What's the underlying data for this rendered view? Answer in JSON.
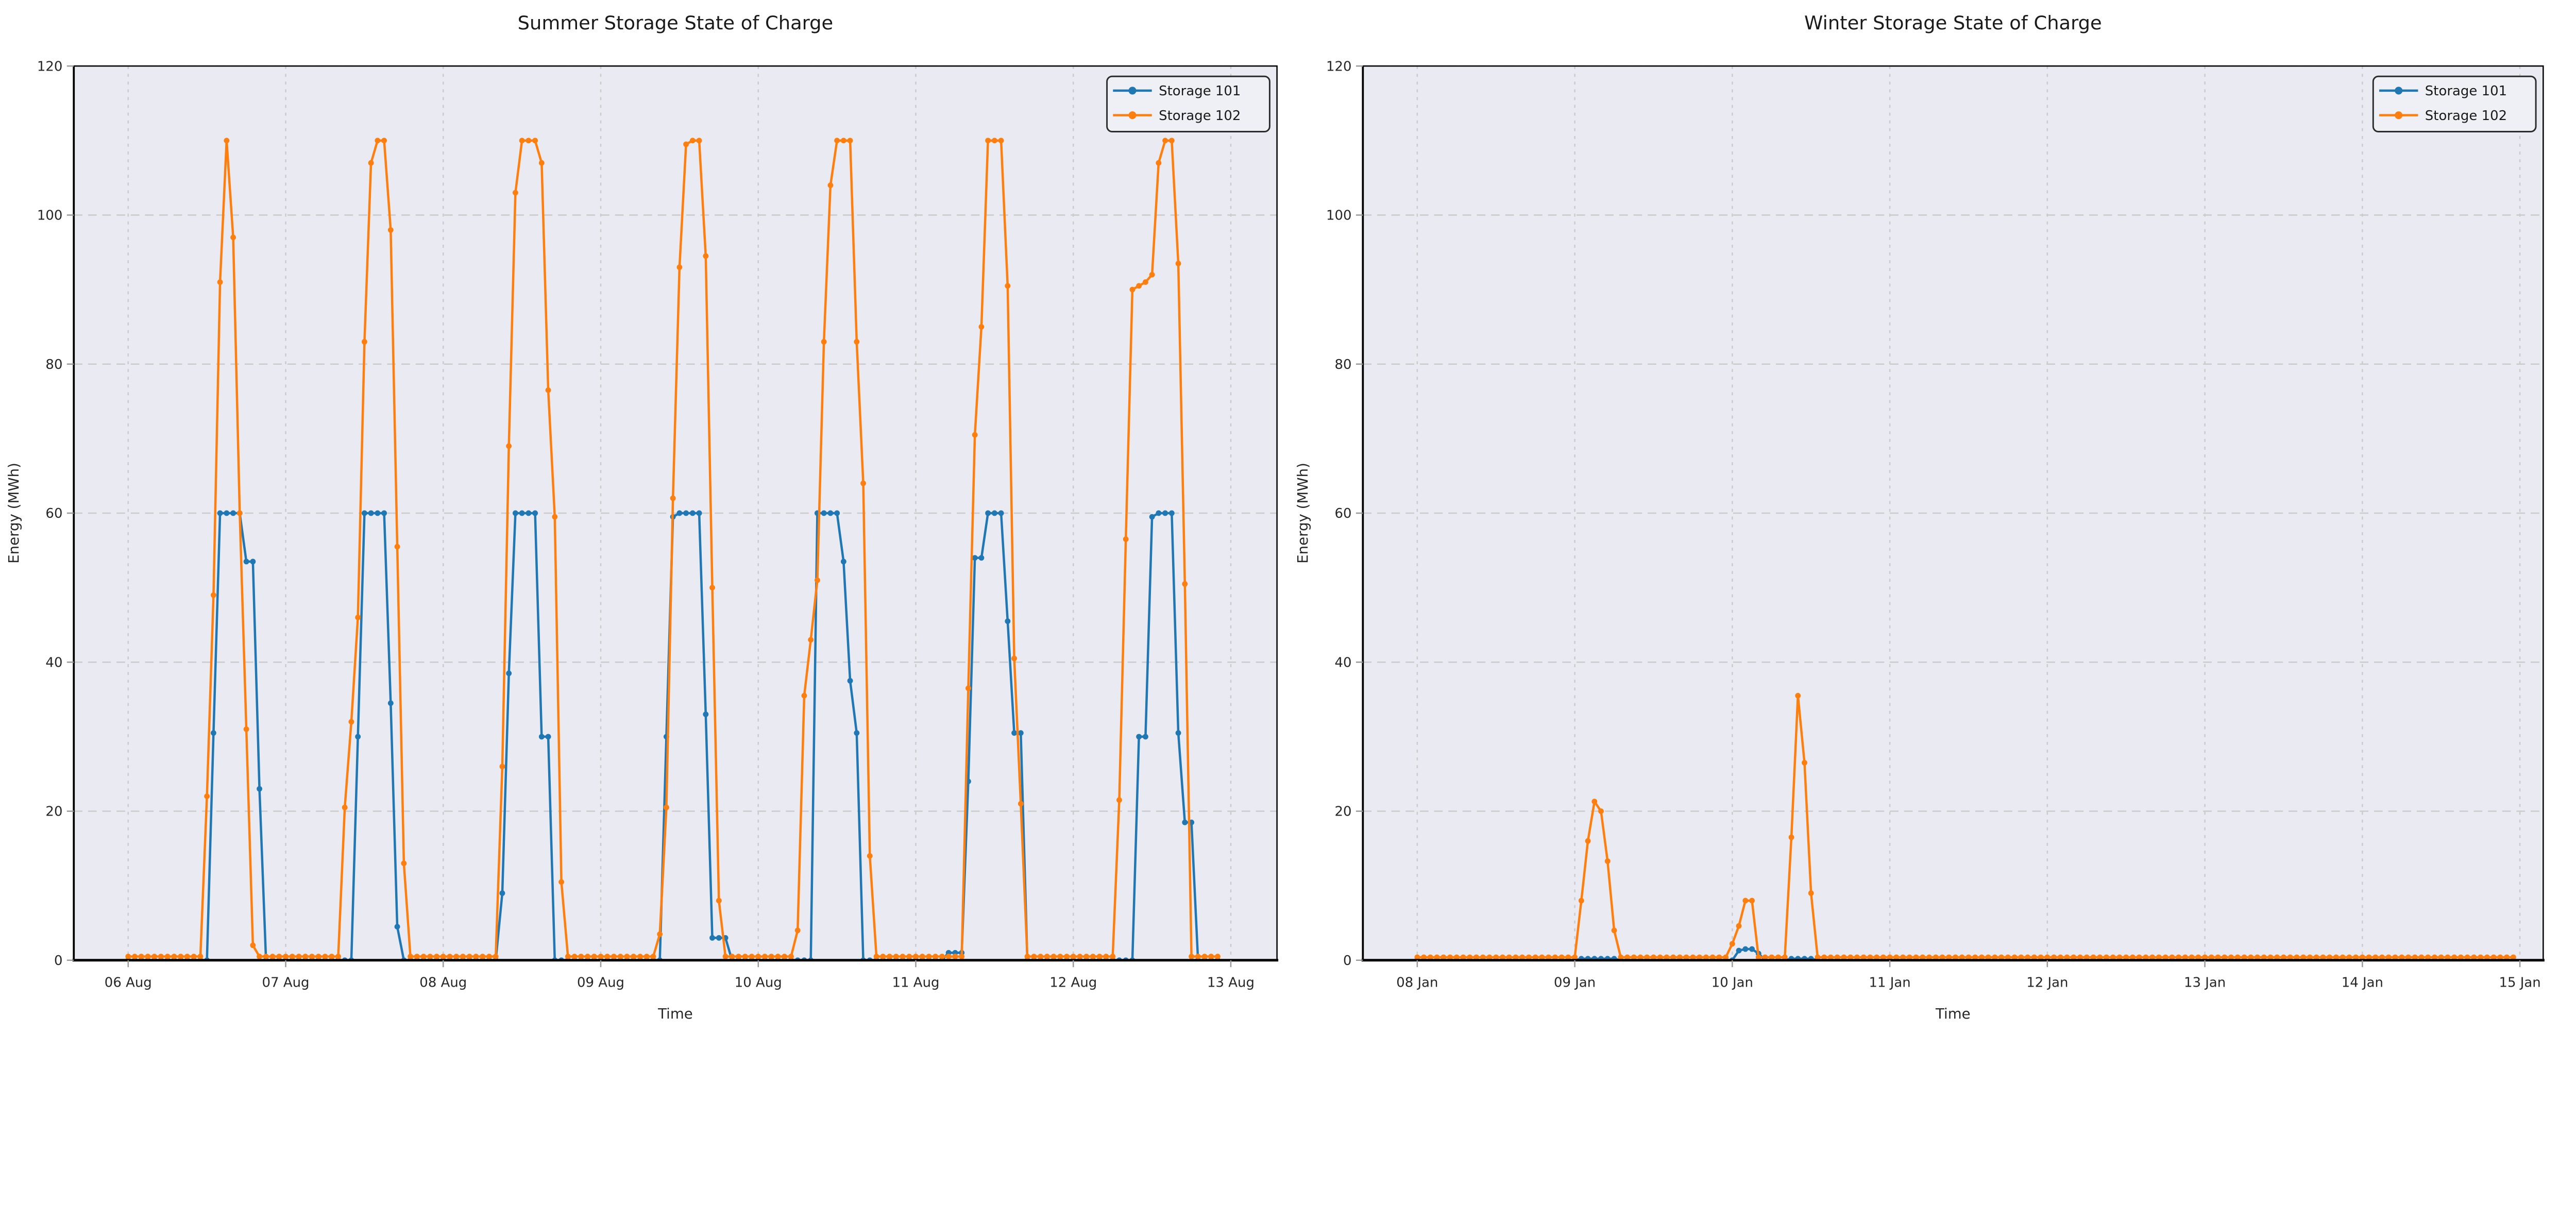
{
  "style": {
    "figure_background": "#ffffff",
    "axes_background": "#eaeaf2",
    "grid_color": "#cbcbcb",
    "spine_color": "#000000",
    "tick_mark_color": "#999999",
    "text_color": "#262626",
    "legend_background": "#efeff6",
    "legend_border": "#2b2b2b",
    "series_colors": {
      "storage_101": "#1f77b4",
      "storage_102": "#ff7f0e"
    }
  },
  "chart_data": [
    {
      "type": "line",
      "panel": "summer",
      "title": "Summer Storage State of Charge",
      "xlabel": "Time",
      "ylabel": "Energy (MWh)",
      "ylim": [
        0,
        120
      ],
      "yticks": [
        0,
        20,
        40,
        60,
        80,
        100,
        120
      ],
      "xtick_labels": [
        "06 Aug",
        "07 Aug",
        "08 Aug",
        "09 Aug",
        "10 Aug",
        "11 Aug",
        "12 Aug",
        "13 Aug"
      ],
      "xtick_hours": [
        0,
        24,
        48,
        72,
        96,
        120,
        144,
        168
      ],
      "xlim_hours": [
        -8.3,
        175.0
      ],
      "grid": true,
      "legend": [
        "Storage 101",
        "Storage 102"
      ],
      "legend_position": "upper right",
      "series": [
        {
          "name": "Storage 101",
          "color_key": "storage_101",
          "baseline": 0,
          "t_start": 0,
          "t_end": 166,
          "points": {
            "13": 30.5,
            "14": 60,
            "15": 60,
            "16": 60,
            "17": 60,
            "18": 53.5,
            "19": 53.5,
            "20": 23,
            "35": 30,
            "36": 60,
            "37": 60,
            "38": 60,
            "39": 60,
            "40": 34.5,
            "41": 4.5,
            "57": 9,
            "58": 38.5,
            "59": 60,
            "60": 60,
            "61": 60,
            "62": 60,
            "63": 30,
            "64": 30,
            "82": 30,
            "83": 59.5,
            "84": 60,
            "85": 60,
            "86": 60,
            "87": 60,
            "88": 33,
            "89": 3,
            "90": 3,
            "91": 3,
            "105": 60,
            "106": 60,
            "107": 60,
            "108": 60,
            "109": 53.5,
            "110": 37.5,
            "111": 30.5,
            "125": 1,
            "126": 1,
            "127": 1,
            "128": 24,
            "129": 54,
            "130": 54,
            "131": 60,
            "132": 60,
            "133": 60,
            "134": 45.5,
            "135": 30.5,
            "136": 30.5,
            "154": 30,
            "155": 30,
            "156": 59.5,
            "157": 60,
            "158": 60,
            "159": 60,
            "160": 30.5,
            "161": 18.5,
            "162": 18.5
          }
        },
        {
          "name": "Storage 102",
          "color_key": "storage_102",
          "baseline": 0.5,
          "t_start": 0,
          "t_end": 166,
          "points": {
            "12": 22,
            "13": 49,
            "14": 91,
            "15": 110,
            "16": 97,
            "17": 60,
            "18": 31,
            "19": 2,
            "33": 20.5,
            "34": 32,
            "35": 46,
            "36": 83,
            "37": 107,
            "38": 110,
            "39": 110,
            "40": 98,
            "41": 55.5,
            "42": 13,
            "57": 26,
            "58": 69,
            "59": 103,
            "60": 110,
            "61": 110,
            "62": 110,
            "63": 107,
            "64": 76.5,
            "65": 59.5,
            "66": 10.5,
            "81": 3.5,
            "82": 20.5,
            "83": 62,
            "84": 93,
            "85": 109.5,
            "86": 110,
            "87": 110,
            "88": 94.5,
            "89": 50,
            "90": 8,
            "102": 4,
            "103": 35.5,
            "104": 43,
            "105": 51,
            "106": 83,
            "107": 104,
            "108": 110,
            "109": 110,
            "110": 110,
            "111": 83,
            "112": 64,
            "113": 14,
            "128": 36.5,
            "129": 70.5,
            "130": 85,
            "131": 110,
            "132": 110,
            "133": 110,
            "134": 90.5,
            "135": 40.5,
            "136": 21,
            "151": 21.5,
            "152": 56.5,
            "153": 90,
            "154": 90.5,
            "155": 91,
            "156": 92,
            "157": 107,
            "158": 110,
            "159": 110,
            "160": 93.5,
            "161": 50.5
          }
        }
      ]
    },
    {
      "type": "line",
      "panel": "winter",
      "title": "Winter Storage State of Charge",
      "xlabel": "Time",
      "ylabel": "Energy (MWh)",
      "ylim": [
        0,
        120
      ],
      "yticks": [
        0,
        20,
        40,
        60,
        80,
        100,
        120
      ],
      "xtick_labels": [
        "08 Jan",
        "09 Jan",
        "10 Jan",
        "11 Jan",
        "12 Jan",
        "13 Jan",
        "14 Jan",
        "15 Jan"
      ],
      "xtick_hours": [
        0,
        24,
        48,
        72,
        96,
        120,
        144,
        168
      ],
      "xlim_hours": [
        -8.3,
        171.5
      ],
      "grid": true,
      "legend": [
        "Storage 101",
        "Storage 102"
      ],
      "legend_position": "upper right",
      "series": [
        {
          "name": "Storage 101",
          "color_key": "storage_101",
          "baseline": 0,
          "t_start": 0,
          "t_end": 167,
          "points": {
            "25": 0.2,
            "26": 0.2,
            "27": 0.2,
            "28": 0.2,
            "29": 0.2,
            "30": 0.2,
            "49": 1.3,
            "50": 1.5,
            "51": 1.5,
            "52": 0.9,
            "57": 0.2,
            "58": 0.2,
            "59": 0.2,
            "60": 0.2
          }
        },
        {
          "name": "Storage 102",
          "color_key": "storage_102",
          "baseline": 0.4,
          "t_start": 0,
          "t_end": 167,
          "points": {
            "25": 8,
            "26": 16,
            "27": 21.3,
            "28": 20,
            "29": 13.3,
            "30": 4,
            "48": 2.2,
            "49": 4.6,
            "50": 8,
            "51": 8,
            "57": 16.5,
            "58": 35.5,
            "59": 26.5,
            "60": 9
          }
        }
      ]
    }
  ]
}
